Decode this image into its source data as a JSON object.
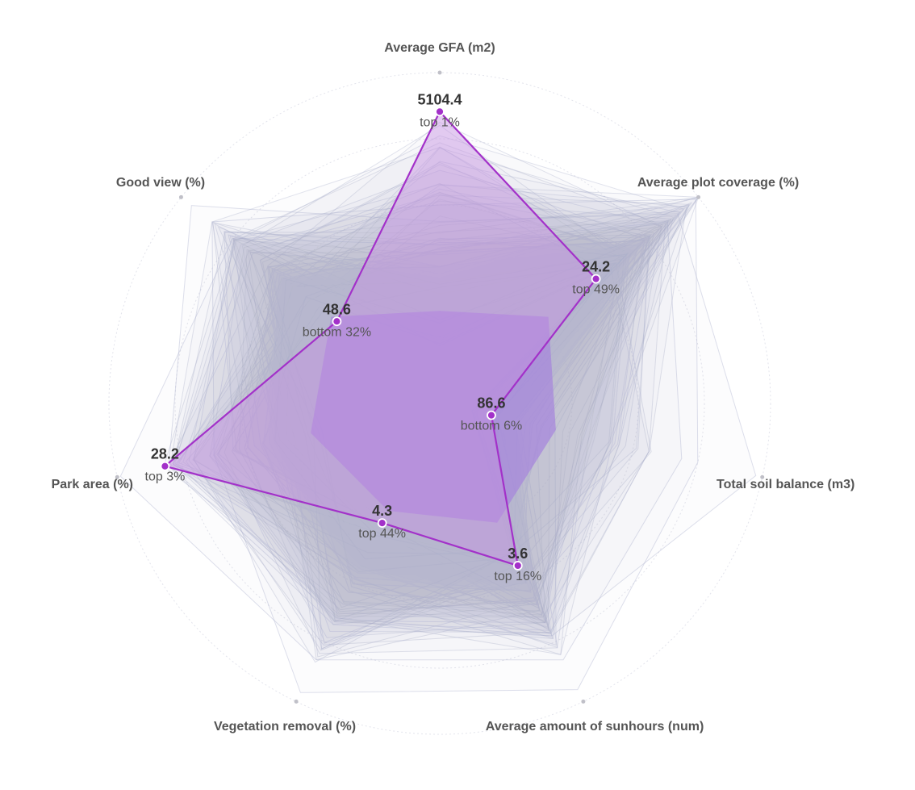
{
  "chart_data": {
    "type": "radar",
    "axes": [
      "Average GFA (m2)",
      "Average plot coverage (%)",
      "Total soil balance (m3)",
      "Average amount of sunhours (num)",
      "Vegetation removal (%)",
      "Park area (%)",
      "Good view (%)"
    ],
    "highlighted": {
      "values": [
        "5104.4",
        "24.2",
        "86.6",
        "3.6",
        "4.3",
        "28.2",
        "48.6"
      ],
      "ranks": [
        "top 1%",
        "top 49%",
        "bottom 6%",
        "top 16%",
        "top 44%",
        "top 3%",
        "bottom 32%"
      ],
      "normalized": [
        0.882,
        0.604,
        0.16,
        0.544,
        0.401,
        0.852,
        0.398
      ]
    },
    "axis_max_normalized": 1.0,
    "background_series_count": 60,
    "colors": {
      "highlight_line": "#a331c9",
      "highlight_fill": "#c690e3",
      "background_line": "#a9b0cc",
      "background_fill": "#b3b9d6",
      "core_fill": "#a583dd",
      "grid": "#e3e4ec",
      "axis_dot": "#c0c0c8"
    }
  }
}
